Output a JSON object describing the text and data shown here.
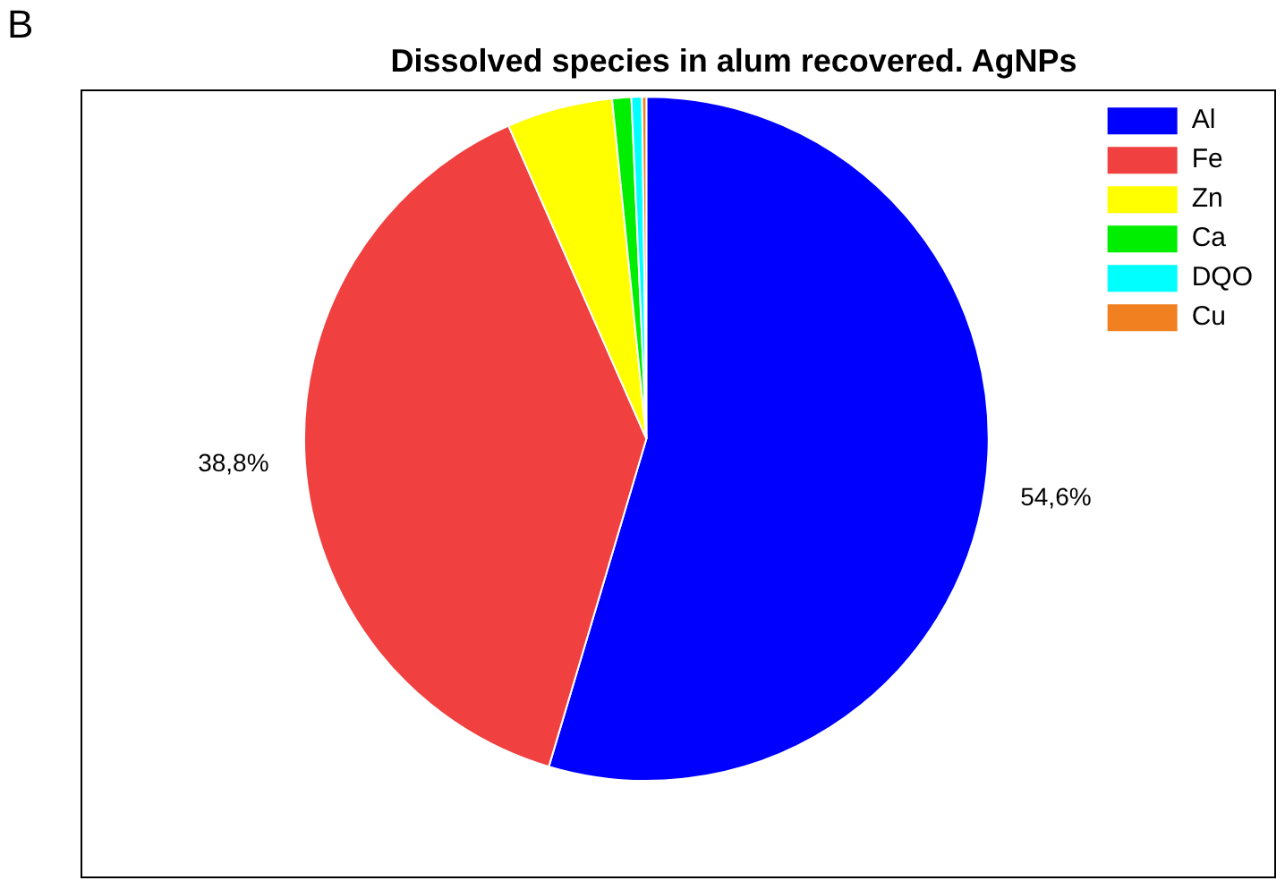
{
  "chart_data": {
    "type": "pie",
    "title": "Dissolved species in alum recovered. AgNPs",
    "annotations": [
      "B"
    ],
    "categories": [
      "Al",
      "Fe",
      "Zn",
      "Ca",
      "DQO",
      "Cu"
    ],
    "values": [
      54.6,
      38.8,
      5.0,
      0.9,
      0.5,
      0.2
    ],
    "value_labels": [
      "54,6%",
      "38,8%",
      null,
      null,
      null,
      null
    ],
    "colors": [
      "#0000ff",
      "#f04040",
      "#ffff00",
      "#00ee00",
      "#00ffff",
      "#f08020"
    ],
    "legend": "top right"
  }
}
